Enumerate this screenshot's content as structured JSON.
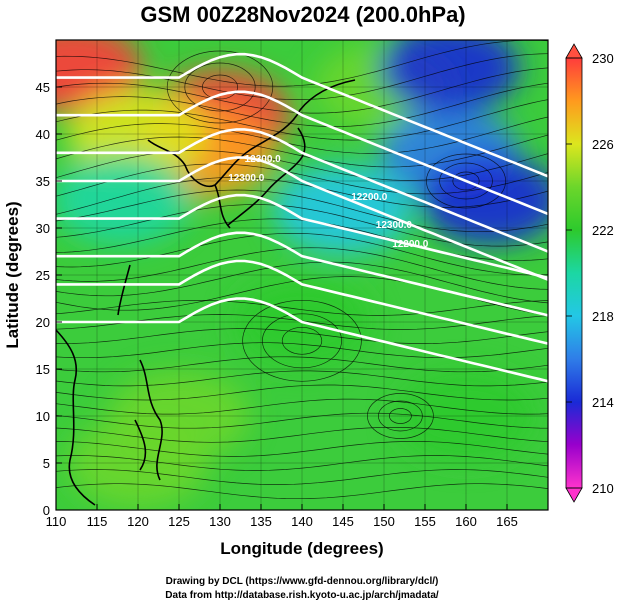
{
  "title": "GSM 00Z28Nov2024 (200.0hPa)",
  "xlabel": "Longitude (degrees)",
  "ylabel": "Latitude  (degrees)",
  "credits": [
    "Drawing by DCL (https://www.gfd-dennou.org/library/dcl/)",
    "Data from http://database.rish.kyoto-u.ac.jp/arch/jmadata/"
  ],
  "colorbar": {
    "min": 210,
    "max": 230,
    "ticks": [
      "230",
      "226",
      "222",
      "218",
      "214",
      "210"
    ],
    "stops": [
      {
        "v": 210,
        "color": "#ff33cc"
      },
      {
        "v": 212,
        "color": "#9900cc"
      },
      {
        "v": 214,
        "color": "#1a2ad6"
      },
      {
        "v": 216,
        "color": "#2f7de8"
      },
      {
        "v": 218,
        "color": "#23c7e6"
      },
      {
        "v": 220,
        "color": "#1cd7a3"
      },
      {
        "v": 222,
        "color": "#2dca2d"
      },
      {
        "v": 224,
        "color": "#6cd62b"
      },
      {
        "v": 226,
        "color": "#dce61e"
      },
      {
        "v": 228,
        "color": "#ff9a1e"
      },
      {
        "v": 230,
        "color": "#ff3c3c"
      }
    ]
  },
  "chart_data": {
    "type": "heatmap",
    "description_units": "temperature (K) shading with streamlines and geopotential contours",
    "xlim": [
      110,
      170
    ],
    "ylim": [
      0,
      50
    ],
    "xticks": [
      "110",
      "115",
      "120",
      "125",
      "130",
      "135",
      "140",
      "145",
      "150",
      "155",
      "160",
      "165"
    ],
    "yticks": [
      "0",
      "5",
      "10",
      "15",
      "20",
      "25",
      "30",
      "35",
      "40",
      "45"
    ],
    "contour_labels": [
      "12300.0",
      "12300.0",
      "12200.0",
      "12300.0",
      "12200.0"
    ],
    "regions": [
      {
        "lon": 112,
        "lat": 47,
        "value": 229
      },
      {
        "lon": 130,
        "lat": 42,
        "value": 229
      },
      {
        "lon": 128,
        "lat": 38,
        "value": 227
      },
      {
        "lon": 120,
        "lat": 40,
        "value": 225
      },
      {
        "lon": 118,
        "lat": 33,
        "value": 220
      },
      {
        "lon": 150,
        "lat": 45,
        "value": 223
      },
      {
        "lon": 158,
        "lat": 38,
        "value": 216
      },
      {
        "lon": 163,
        "lat": 33,
        "value": 214
      },
      {
        "lon": 158,
        "lat": 47,
        "value": 213
      },
      {
        "lon": 145,
        "lat": 32,
        "value": 218
      },
      {
        "lon": 140,
        "lat": 20,
        "value": 222
      },
      {
        "lon": 125,
        "lat": 10,
        "value": 223
      },
      {
        "lon": 160,
        "lat": 10,
        "value": 222
      },
      {
        "lon": 120,
        "lat": 5,
        "value": 224
      }
    ]
  }
}
